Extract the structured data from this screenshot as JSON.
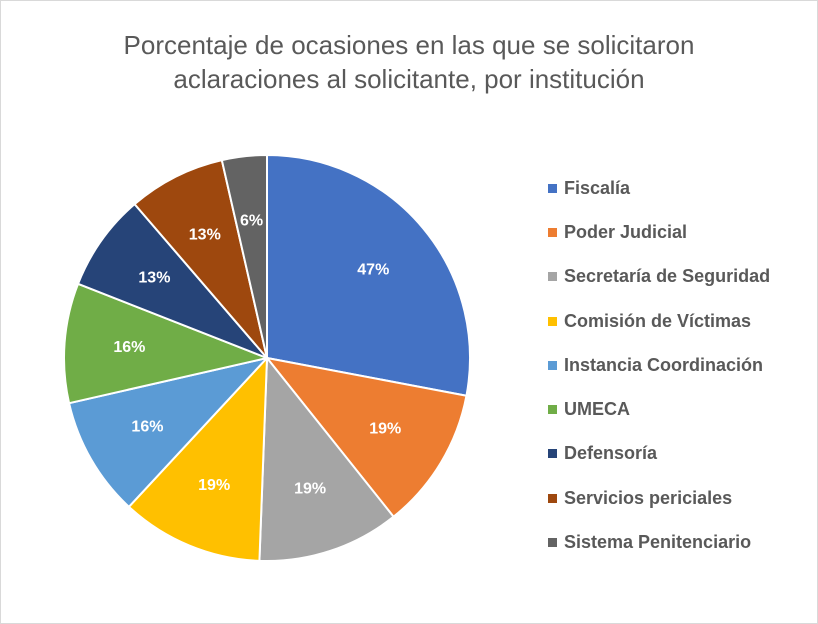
{
  "chart_data": {
    "type": "pie",
    "title_lines": [
      "Porcentaje de ocasiones en las que se solicitaron",
      "aclaraciones al solicitante, por institución"
    ],
    "title": "Porcentaje de ocasiones en las que se solicitaron aclaraciones al solicitante, por institución",
    "legend_position": "right",
    "slices": [
      {
        "name": "Fiscalía",
        "value": 47,
        "label": "47%",
        "color": "#4472C4"
      },
      {
        "name": "Poder Judicial",
        "value": 19,
        "label": "19%",
        "color": "#ED7D31"
      },
      {
        "name": "Secretaría de Seguridad",
        "value": 19,
        "label": "19%",
        "color": "#A5A5A5"
      },
      {
        "name": "Comisión de Víctimas",
        "value": 19,
        "label": "19%",
        "color": "#FFC000"
      },
      {
        "name": "Instancia Coordinación",
        "value": 16,
        "label": "16%",
        "color": "#5B9BD5"
      },
      {
        "name": "UMECA",
        "value": 16,
        "label": "16%",
        "color": "#70AD47"
      },
      {
        "name": "Defensoría",
        "value": 13,
        "label": "13%",
        "color": "#264478"
      },
      {
        "name": "Servicios periciales",
        "value": 13,
        "label": "13%",
        "color": "#9E480E"
      },
      {
        "name": "Sistema Penitenciario",
        "value": 6,
        "label": "6%",
        "color": "#636363"
      }
    ]
  }
}
